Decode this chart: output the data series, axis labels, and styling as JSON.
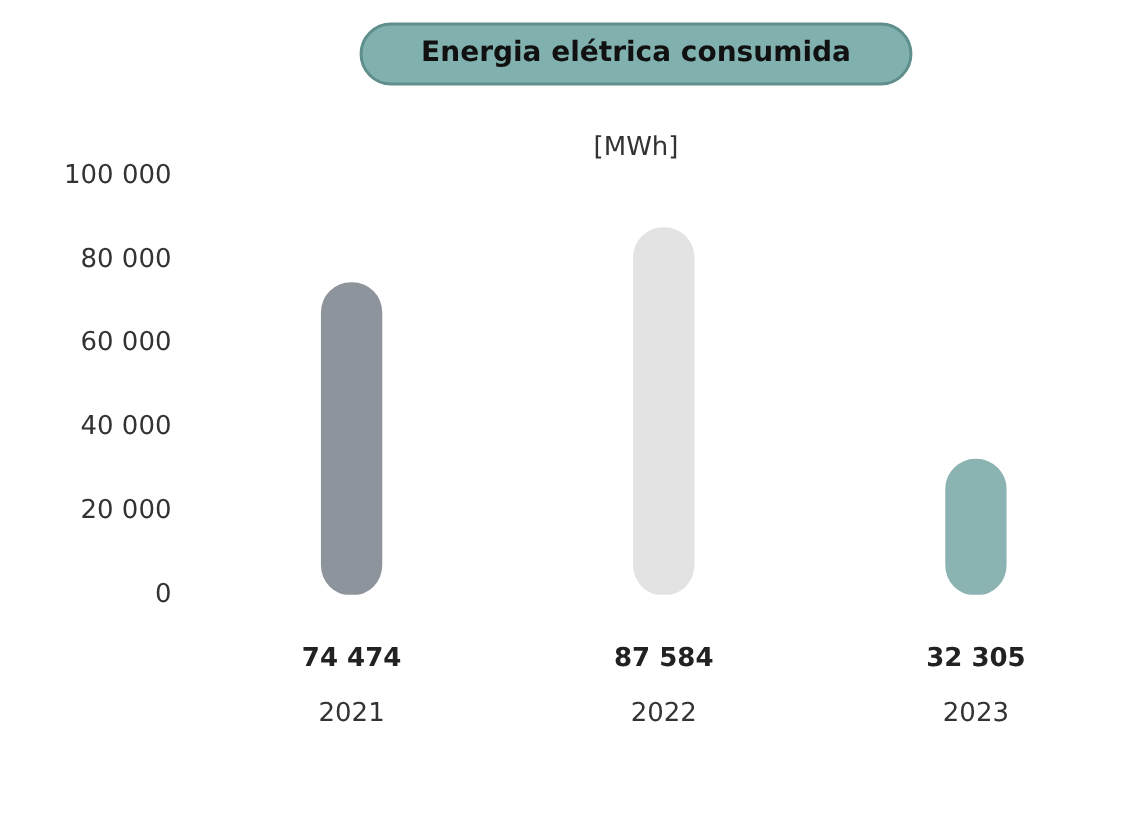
{
  "chart_data": {
    "type": "bar",
    "title": "Energia elétrica consumida",
    "ylabel": "[MWh]",
    "categories": [
      "2021",
      "2022",
      "2023"
    ],
    "values": [
      74474,
      87584,
      32305
    ],
    "colors": [
      "#8e949c",
      "#e3e3e3",
      "#8ab3b2"
    ],
    "value_labels": [
      "74 474",
      "87 584",
      "32 305"
    ],
    "ylim": [
      0,
      100000
    ],
    "yticks": [
      {
        "value": 0,
        "label": "0"
      },
      {
        "value": 20000,
        "label": "20 000"
      },
      {
        "value": 40000,
        "label": "40 000"
      },
      {
        "value": 60000,
        "label": "60 000"
      },
      {
        "value": 80000,
        "label": "80 000"
      },
      {
        "value": 100000,
        "label": "100 000"
      }
    ],
    "grid": false,
    "legend": false
  }
}
